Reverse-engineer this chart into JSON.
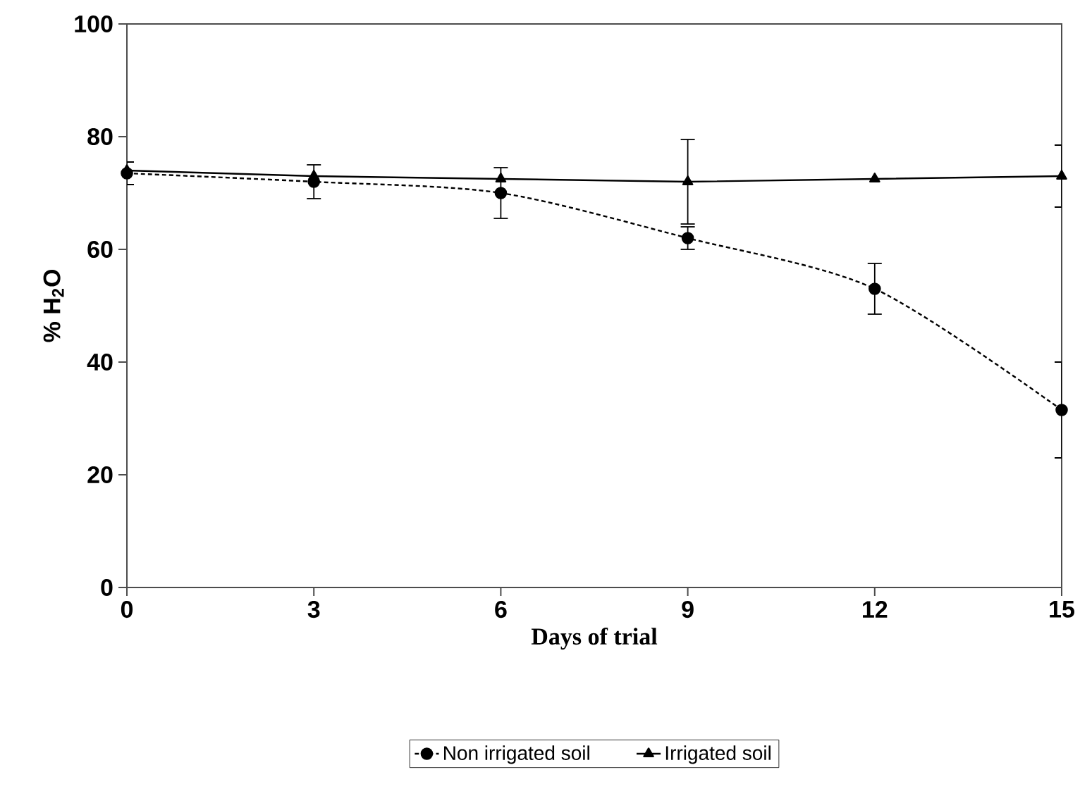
{
  "chart_data": {
    "type": "line",
    "xlabel": "Days of trial",
    "ylabel": "% H$_{2}$O",
    "x": [
      0,
      3,
      6,
      9,
      12,
      15
    ],
    "xlim": [
      0,
      15
    ],
    "xticks": [
      0,
      3,
      6,
      9,
      12,
      15
    ],
    "ylim": [
      0,
      100
    ],
    "yticks": [
      0,
      20,
      40,
      60,
      80,
      100
    ],
    "grid": false,
    "legend": "bottom",
    "series": [
      {
        "name": "Non irrigated soil",
        "color": "#000000",
        "marker": "circle",
        "line_style": "dashed",
        "values": [
          73.5,
          72,
          70,
          62,
          53,
          31.5
        ],
        "errors": [
          2,
          3,
          4.5,
          2,
          4.5,
          8.5
        ]
      },
      {
        "name": "Irrigated soil",
        "color": "#000000",
        "marker": "triangle",
        "line_style": "solid",
        "values": [
          74,
          73,
          72.5,
          72,
          72.5,
          73
        ],
        "errors": [
          null,
          null,
          null,
          7.5,
          null,
          5.5
        ]
      }
    ]
  }
}
